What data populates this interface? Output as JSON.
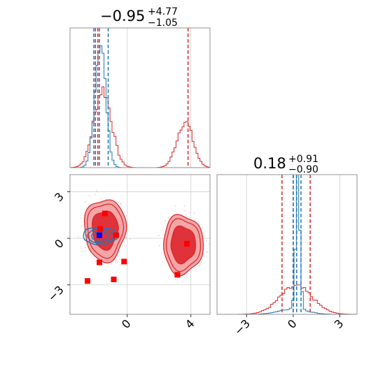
{
  "chart_data": {
    "type": "corner",
    "colors": {
      "red": "#d62728",
      "red_fill_light": "#f4a5a8",
      "red_fill_dark": "#e0323a",
      "blue": "#1f77b4",
      "marker_red": "#ff0000",
      "marker_blue": "#0000ff",
      "grid": "#cfcfcf",
      "frame": "#888888"
    },
    "titles": {
      "p1": {
        "median": "−0.95",
        "plus": "+4.77",
        "minus": "−1.05"
      },
      "p2": {
        "median": "0.18",
        "plus": "+0.91",
        "minus": "−0.90"
      }
    },
    "p1_range": [
      -3.6,
      5.2
    ],
    "p2_range": [
      -4.9,
      4.1
    ],
    "p1_ticks": [
      {
        "value": 0,
        "label": "0"
      },
      {
        "value": 4,
        "label": "4"
      }
    ],
    "p2_ticks": [
      {
        "value": -3,
        "label": "−3"
      },
      {
        "value": 0,
        "label": "0"
      },
      {
        "value": 3,
        "label": "3"
      }
    ],
    "grid": true,
    "hist_p1": {
      "red_quantiles": [
        -2.0,
        -1.85,
        3.82
      ],
      "blue_quantiles": [
        -2.1,
        -1.75,
        -1.2
      ],
      "red_modes": [
        {
          "center": -1.55,
          "sigma": 0.55,
          "height": 0.56
        },
        {
          "center": 3.62,
          "sigma": 0.5,
          "height": 0.33
        }
      ],
      "blue_modes": [
        {
          "center": -1.7,
          "sigma": 0.34,
          "height": 0.9
        }
      ]
    },
    "hist_p2": {
      "red_quantiles": [
        -0.72,
        0.0,
        1.09
      ],
      "blue_quantiles": [
        0.0,
        0.22,
        0.5
      ],
      "red_modes": [
        {
          "center": 0.18,
          "sigma": 1.05,
          "height": 0.2
        }
      ],
      "blue_modes": [
        {
          "center": 0.3,
          "sigma": 0.14,
          "height": 0.92
        },
        {
          "center": 0.0,
          "sigma": 0.9,
          "height": 0.04
        }
      ]
    },
    "joint_red_blobs": [
      {
        "center": [
          -1.4,
          0.55
        ],
        "radii": [
          1.3,
          2.0
        ]
      },
      {
        "center": [
          3.5,
          -0.4
        ],
        "radii": [
          1.25,
          1.9
        ]
      }
    ],
    "joint_blue_blob": {
      "center": [
        -1.7,
        0.15
      ],
      "radii": [
        1.1,
        0.55
      ]
    },
    "red_markers": [
      [
        -1.4,
        1.6
      ],
      [
        -1.7,
        0.6
      ],
      [
        -0.7,
        0.2
      ],
      [
        -1.75,
        -1.55
      ],
      [
        -0.2,
        -1.5
      ],
      [
        -2.5,
        -2.75
      ],
      [
        -0.85,
        -2.65
      ],
      [
        3.75,
        -0.35
      ],
      [
        3.15,
        -2.35
      ]
    ],
    "blue_markers": [
      [
        -1.75,
        0.2
      ]
    ]
  }
}
